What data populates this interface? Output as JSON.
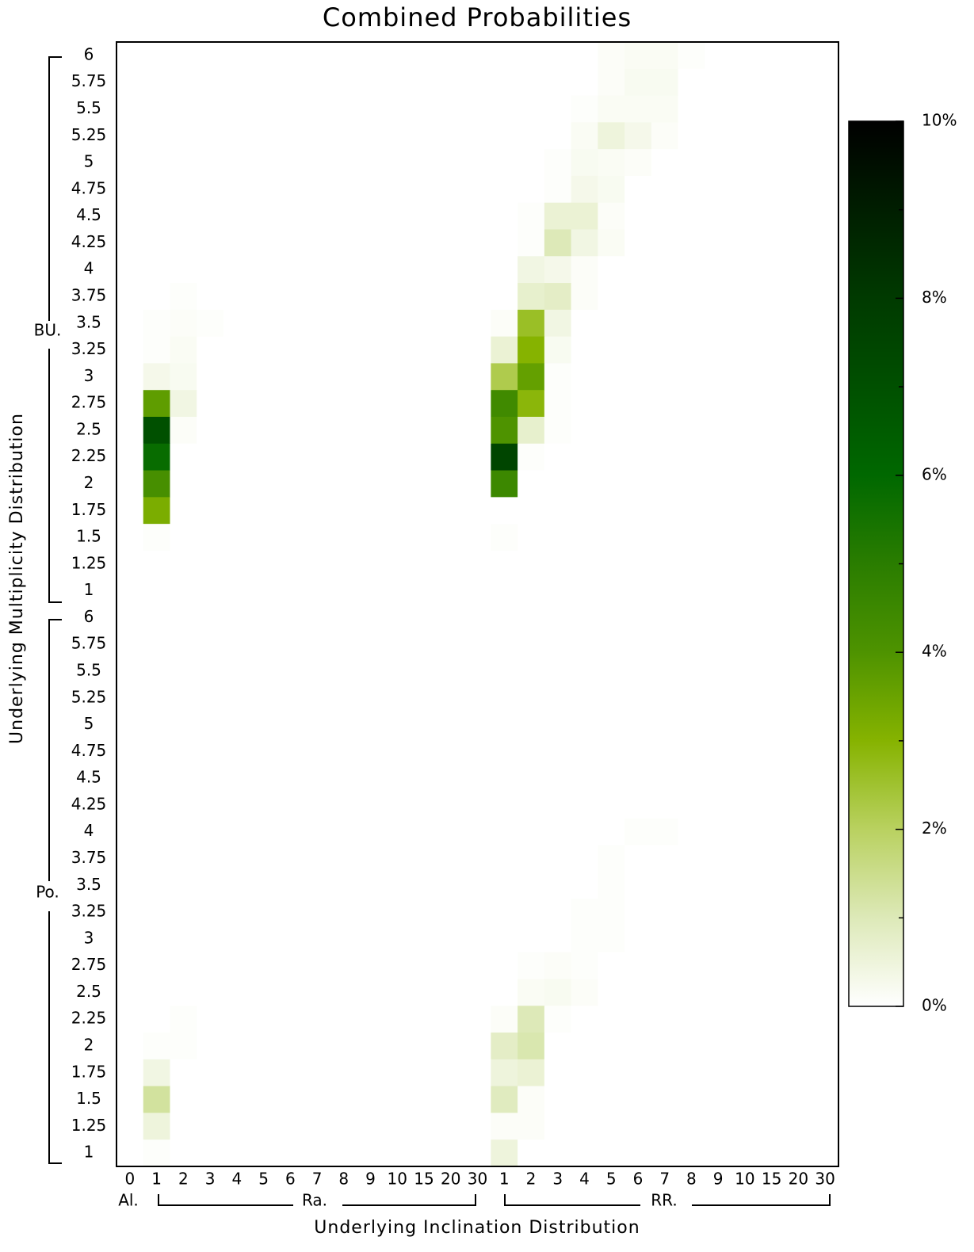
{
  "chart_data": {
    "type": "heatmap",
    "title": "Combined Probabilities",
    "x_label": "Underlying Inclination Distribution",
    "y_label": "Underlying Multiplicity Distribution",
    "categories": [
      "0",
      "1",
      "2",
      "3",
      "4",
      "5",
      "6",
      "7",
      "8",
      "9",
      "10",
      "15",
      "20",
      "30",
      "1",
      "2",
      "3",
      "4",
      "5",
      "6",
      "7",
      "8",
      "9",
      "10",
      "15",
      "20",
      "30"
    ],
    "x_groups": [
      "Al.",
      "Ra.",
      "RR."
    ],
    "y_categories": [
      "6",
      "5.75",
      "5.5",
      "5.25",
      "5",
      "4.75",
      "4.5",
      "4.25",
      "4",
      "3.75",
      "3.5",
      "3.25",
      "3",
      "2.75",
      "2.5",
      "2.25",
      "2",
      "1.75",
      "1.5",
      "1.25",
      "1",
      "6",
      "5.75",
      "5.5",
      "5.25",
      "5",
      "4.75",
      "4.5",
      "4.25",
      "4",
      "3.75",
      "3.5",
      "3.25",
      "3",
      "2.75",
      "2.5",
      "2.25",
      "2",
      "1.75",
      "1.5",
      "1.25",
      "1"
    ],
    "y_groups": [
      "BU.",
      "Po."
    ],
    "values": [
      [
        0,
        0,
        0,
        0,
        0,
        0,
        0,
        0,
        0,
        0,
        0,
        0,
        0,
        0,
        0,
        0,
        0,
        0,
        0.1,
        0.15,
        0.15,
        0.05,
        0,
        0,
        0,
        0,
        0
      ],
      [
        0,
        0,
        0,
        0,
        0,
        0,
        0,
        0,
        0,
        0,
        0,
        0,
        0,
        0,
        0,
        0,
        0,
        0,
        0.1,
        0.2,
        0.2,
        0,
        0,
        0,
        0,
        0,
        0
      ],
      [
        0,
        0,
        0,
        0,
        0,
        0,
        0,
        0,
        0,
        0,
        0,
        0,
        0,
        0,
        0,
        0,
        0,
        0.05,
        0.15,
        0.15,
        0.15,
        0,
        0,
        0,
        0,
        0,
        0
      ],
      [
        0,
        0,
        0,
        0,
        0,
        0,
        0,
        0,
        0,
        0,
        0,
        0,
        0,
        0,
        0,
        0,
        0,
        0.15,
        0.5,
        0.3,
        0.1,
        0,
        0,
        0,
        0,
        0,
        0
      ],
      [
        0,
        0,
        0,
        0,
        0,
        0,
        0,
        0,
        0,
        0,
        0,
        0,
        0,
        0,
        0,
        0,
        0.05,
        0.2,
        0.15,
        0.1,
        0,
        0,
        0,
        0,
        0,
        0,
        0
      ],
      [
        0,
        0,
        0,
        0,
        0,
        0,
        0,
        0,
        0,
        0,
        0,
        0,
        0,
        0,
        0,
        0,
        0.05,
        0.3,
        0.2,
        0,
        0,
        0,
        0,
        0,
        0,
        0,
        0
      ],
      [
        0,
        0,
        0,
        0,
        0,
        0,
        0,
        0,
        0,
        0,
        0,
        0,
        0,
        0,
        0,
        0.05,
        0.6,
        0.6,
        0.1,
        0,
        0,
        0,
        0,
        0,
        0,
        0,
        0
      ],
      [
        0,
        0,
        0,
        0,
        0,
        0,
        0,
        0,
        0,
        0,
        0,
        0,
        0,
        0,
        0,
        0.05,
        1,
        0.4,
        0.15,
        0,
        0,
        0,
        0,
        0,
        0,
        0,
        0
      ],
      [
        0,
        0,
        0,
        0,
        0,
        0,
        0,
        0,
        0,
        0,
        0,
        0,
        0,
        0,
        0,
        0.4,
        0.3,
        0.1,
        0,
        0,
        0,
        0,
        0,
        0,
        0,
        0,
        0
      ],
      [
        0,
        0,
        0.05,
        0,
        0,
        0,
        0,
        0,
        0,
        0,
        0,
        0,
        0,
        0,
        0,
        0.7,
        0.8,
        0.1,
        0,
        0,
        0,
        0,
        0,
        0,
        0,
        0,
        0
      ],
      [
        0,
        0.05,
        0.1,
        0.05,
        0,
        0,
        0,
        0,
        0,
        0,
        0,
        0,
        0,
        0,
        0.1,
        2.6,
        0.4,
        0,
        0,
        0,
        0,
        0,
        0,
        0,
        0,
        0,
        0
      ],
      [
        0,
        0.05,
        0.15,
        0,
        0,
        0,
        0,
        0,
        0,
        0,
        0,
        0,
        0,
        0,
        0.6,
        3,
        0.2,
        0,
        0,
        0,
        0,
        0,
        0,
        0,
        0,
        0,
        0
      ],
      [
        0,
        0.3,
        0.2,
        0,
        0,
        0,
        0,
        0,
        0,
        0,
        0,
        0,
        0,
        0,
        2.2,
        3.6,
        0.05,
        0,
        0,
        0,
        0,
        0,
        0,
        0,
        0,
        0,
        0
      ],
      [
        0,
        3.7,
        0.4,
        0,
        0,
        0,
        0,
        0,
        0,
        0,
        0,
        0,
        0,
        0,
        4.4,
        2.9,
        0.05,
        0,
        0,
        0,
        0,
        0,
        0,
        0,
        0,
        0,
        0
      ],
      [
        0,
        7,
        0.1,
        0,
        0,
        0,
        0,
        0,
        0,
        0,
        0,
        0,
        0,
        0,
        4,
        0.7,
        0.05,
        0,
        0,
        0,
        0,
        0,
        0,
        0,
        0,
        0,
        0
      ],
      [
        0,
        5.8,
        0,
        0,
        0,
        0,
        0,
        0,
        0,
        0,
        0,
        0,
        0,
        0,
        7.5,
        0.05,
        0,
        0,
        0,
        0,
        0,
        0,
        0,
        0,
        0,
        0,
        0
      ],
      [
        0,
        4.2,
        0,
        0,
        0,
        0,
        0,
        0,
        0,
        0,
        0,
        0,
        0,
        0,
        4.5,
        0,
        0,
        0,
        0,
        0,
        0,
        0,
        0,
        0,
        0,
        0,
        0
      ],
      [
        0,
        3.2,
        0,
        0,
        0,
        0,
        0,
        0,
        0,
        0,
        0,
        0,
        0,
        0,
        0,
        0,
        0,
        0,
        0,
        0,
        0,
        0,
        0,
        0,
        0,
        0,
        0
      ],
      [
        0,
        0.05,
        0,
        0,
        0,
        0,
        0,
        0,
        0,
        0,
        0,
        0,
        0,
        0,
        0.05,
        0,
        0,
        0,
        0,
        0,
        0,
        0,
        0,
        0,
        0,
        0,
        0
      ],
      [
        0,
        0,
        0,
        0,
        0,
        0,
        0,
        0,
        0,
        0,
        0,
        0,
        0,
        0,
        0,
        0,
        0,
        0,
        0,
        0,
        0,
        0,
        0,
        0,
        0,
        0,
        0
      ],
      [
        0,
        0,
        0,
        0,
        0,
        0,
        0,
        0,
        0,
        0,
        0,
        0,
        0,
        0,
        0,
        0,
        0,
        0,
        0,
        0,
        0,
        0,
        0,
        0,
        0,
        0,
        0
      ],
      [
        0,
        0,
        0,
        0,
        0,
        0,
        0,
        0,
        0,
        0,
        0,
        0,
        0,
        0,
        0,
        0,
        0,
        0,
        0,
        0,
        0,
        0,
        0,
        0,
        0,
        0,
        0
      ],
      [
        0,
        0,
        0,
        0,
        0,
        0,
        0,
        0,
        0,
        0,
        0,
        0,
        0,
        0,
        0,
        0,
        0,
        0,
        0,
        0,
        0,
        0,
        0,
        0,
        0,
        0,
        0
      ],
      [
        0,
        0,
        0,
        0,
        0,
        0,
        0,
        0,
        0,
        0,
        0,
        0,
        0,
        0,
        0,
        0,
        0,
        0,
        0,
        0,
        0,
        0,
        0,
        0,
        0,
        0,
        0
      ],
      [
        0,
        0,
        0,
        0,
        0,
        0,
        0,
        0,
        0,
        0,
        0,
        0,
        0,
        0,
        0,
        0,
        0,
        0,
        0,
        0,
        0,
        0,
        0,
        0,
        0,
        0,
        0
      ],
      [
        0,
        0,
        0,
        0,
        0,
        0,
        0,
        0,
        0,
        0,
        0,
        0,
        0,
        0,
        0,
        0,
        0,
        0,
        0,
        0,
        0,
        0,
        0,
        0,
        0,
        0,
        0
      ],
      [
        0,
        0,
        0,
        0,
        0,
        0,
        0,
        0,
        0,
        0,
        0,
        0,
        0,
        0,
        0,
        0,
        0,
        0,
        0,
        0,
        0,
        0,
        0,
        0,
        0,
        0,
        0
      ],
      [
        0,
        0,
        0,
        0,
        0,
        0,
        0,
        0,
        0,
        0,
        0,
        0,
        0,
        0,
        0,
        0,
        0,
        0,
        0,
        0,
        0,
        0,
        0,
        0,
        0,
        0,
        0
      ],
      [
        0,
        0,
        0,
        0,
        0,
        0,
        0,
        0,
        0,
        0,
        0,
        0,
        0,
        0,
        0,
        0,
        0,
        0,
        0,
        0,
        0,
        0,
        0,
        0,
        0,
        0,
        0
      ],
      [
        0,
        0,
        0,
        0,
        0,
        0,
        0,
        0,
        0,
        0,
        0,
        0,
        0,
        0,
        0,
        0,
        0,
        0,
        0,
        0.05,
        0.05,
        0,
        0,
        0,
        0,
        0,
        0
      ],
      [
        0,
        0,
        0,
        0,
        0,
        0,
        0,
        0,
        0,
        0,
        0,
        0,
        0,
        0,
        0,
        0,
        0,
        0,
        0.05,
        0,
        0,
        0,
        0,
        0,
        0,
        0,
        0
      ],
      [
        0,
        0,
        0,
        0,
        0,
        0,
        0,
        0,
        0,
        0,
        0,
        0,
        0,
        0,
        0,
        0,
        0,
        0,
        0.05,
        0,
        0,
        0,
        0,
        0,
        0,
        0,
        0
      ],
      [
        0,
        0,
        0,
        0,
        0,
        0,
        0,
        0,
        0,
        0,
        0,
        0,
        0,
        0,
        0,
        0,
        0,
        0.05,
        0.05,
        0,
        0,
        0,
        0,
        0,
        0,
        0,
        0
      ],
      [
        0,
        0,
        0,
        0,
        0,
        0,
        0,
        0,
        0,
        0,
        0,
        0,
        0,
        0,
        0,
        0,
        0,
        0.05,
        0.05,
        0,
        0,
        0,
        0,
        0,
        0,
        0,
        0
      ],
      [
        0,
        0,
        0,
        0,
        0,
        0,
        0,
        0,
        0,
        0,
        0,
        0,
        0,
        0,
        0,
        0.05,
        0.1,
        0.05,
        0,
        0,
        0,
        0,
        0,
        0,
        0,
        0,
        0
      ],
      [
        0,
        0,
        0,
        0,
        0,
        0,
        0,
        0,
        0,
        0,
        0,
        0,
        0,
        0,
        0,
        0.15,
        0.2,
        0.1,
        0,
        0,
        0,
        0,
        0,
        0,
        0,
        0,
        0
      ],
      [
        0,
        0,
        0.05,
        0,
        0,
        0,
        0,
        0,
        0,
        0,
        0,
        0,
        0,
        0,
        0.1,
        1,
        0.05,
        0,
        0,
        0,
        0,
        0,
        0,
        0,
        0,
        0,
        0
      ],
      [
        0,
        0.05,
        0.05,
        0,
        0,
        0,
        0,
        0,
        0,
        0,
        0,
        0,
        0,
        0,
        0.8,
        1.1,
        0,
        0,
        0,
        0,
        0,
        0,
        0,
        0,
        0,
        0,
        0
      ],
      [
        0,
        0.4,
        0,
        0,
        0,
        0,
        0,
        0,
        0,
        0,
        0,
        0,
        0,
        0,
        0.5,
        0.6,
        0,
        0,
        0,
        0,
        0,
        0,
        0,
        0,
        0,
        0,
        0
      ],
      [
        0,
        1.3,
        0,
        0,
        0,
        0,
        0,
        0,
        0,
        0,
        0,
        0,
        0,
        0,
        0.9,
        0.1,
        0,
        0,
        0,
        0,
        0,
        0,
        0,
        0,
        0,
        0,
        0
      ],
      [
        0,
        0.5,
        0,
        0,
        0,
        0,
        0,
        0,
        0,
        0,
        0,
        0,
        0,
        0,
        0.1,
        0.1,
        0,
        0,
        0,
        0,
        0,
        0,
        0,
        0,
        0,
        0,
        0
      ],
      [
        0,
        0.05,
        0,
        0,
        0,
        0,
        0,
        0,
        0,
        0,
        0,
        0,
        0,
        0,
        0.5,
        0,
        0,
        0,
        0,
        0,
        0,
        0,
        0,
        0,
        0,
        0,
        0
      ]
    ],
    "clim": [
      0,
      10
    ],
    "colormap": [
      "#ffffff",
      "#dde9b8",
      "#b9d160",
      "#86b300",
      "#4e9300",
      "#2a7d00",
      "#006800",
      "#005000",
      "#003a00",
      "#001e00",
      "#000000"
    ],
    "cbar_ticks": [
      {
        "value": 0,
        "label": "0%"
      },
      {
        "value": 2,
        "label": "2%"
      },
      {
        "value": 4,
        "label": "4%"
      },
      {
        "value": 6,
        "label": "6%"
      },
      {
        "value": 8,
        "label": "8%"
      },
      {
        "value": 10,
        "label": "10%"
      }
    ],
    "cbar_minor_ticks": [
      1,
      3,
      5,
      7,
      9
    ]
  }
}
